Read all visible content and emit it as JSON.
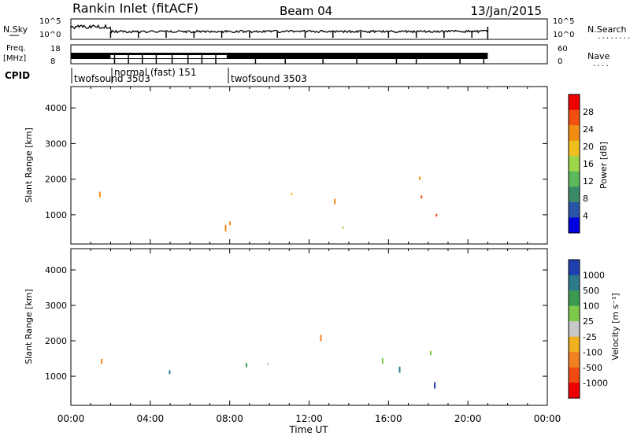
{
  "header": {
    "station": "Rankin Inlet (fitACF)",
    "beam": "Beam 04",
    "date": "13/Jan/2015"
  },
  "sky_panel": {
    "left_label": "N.Sky",
    "right_label": "N.Search",
    "left_ticks": [
      "10^5",
      "10^0"
    ],
    "right_ticks": [
      "10^5",
      "10^0"
    ],
    "right_dots": "........"
  },
  "freq_panel": {
    "left_label_1": "Freq.",
    "left_label_2": "[MHz]",
    "right_label": "Nave",
    "left_ticks": [
      "18",
      "8"
    ],
    "right_ticks": [
      "60",
      "0"
    ],
    "right_dots": "...."
  },
  "cpid": {
    "label": "CPID",
    "segments": [
      {
        "name": "twofsound 3503",
        "start_h": 0.0,
        "end_h": 2.0
      },
      {
        "name": "normal (fast) 151",
        "start_h": 2.0,
        "end_h": 7.85
      },
      {
        "name": "twofsound 3503",
        "start_h": 7.85,
        "end_h": 21.0
      }
    ]
  },
  "colors": {
    "power_scale": [
      "#0000dd",
      "#2855a8",
      "#3a8a68",
      "#5bb85b",
      "#9ed64a",
      "#f0c020",
      "#f28c10",
      "#f25010",
      "#ee0000"
    ],
    "velocity_scale": [
      "#1f3fb0",
      "#2a7a8a",
      "#3a9a50",
      "#7ec84a",
      "#c8c8c8",
      "#f0b020",
      "#f08020",
      "#f04a10",
      "#ee0000"
    ]
  },
  "chart_data": [
    {
      "type": "heatmap",
      "title": "",
      "xlabel": "Time UT",
      "ylabel": "Slant Range [km]",
      "xlim_hours": [
        0,
        24
      ],
      "ylim_km": [
        180,
        4600
      ],
      "x_ticks": [
        "00:00",
        "04:00",
        "08:00",
        "12:00",
        "16:00",
        "20:00",
        "00:00"
      ],
      "y_ticks": [
        1000,
        2000,
        3000,
        4000
      ],
      "colorbar_label": "Power [dB]",
      "colorbar_ticks": [
        "4",
        "8",
        "12",
        "16",
        "20",
        "24",
        "28"
      ],
      "data_end_hour": 21.0
    },
    {
      "type": "heatmap",
      "title": "",
      "xlabel": "Time UT",
      "ylabel": "Slant Range [km]",
      "xlim_hours": [
        0,
        24
      ],
      "ylim_km": [
        180,
        4600
      ],
      "x_ticks": [
        "00:00",
        "04:00",
        "08:00",
        "12:00",
        "16:00",
        "20:00",
        "00:00"
      ],
      "y_ticks": [
        1000,
        2000,
        3000,
        4000
      ],
      "colorbar_label": "Velocity [m s⁻¹]",
      "colorbar_ticks": [
        "1000",
        "500",
        "100",
        "25",
        "-25",
        "-100",
        "-500",
        "-1000"
      ],
      "data_end_hour": 21.0
    }
  ],
  "x_axis": {
    "label": "Time UT",
    "ticks": [
      "00:00",
      "04:00",
      "08:00",
      "12:00",
      "16:00",
      "20:00",
      "00:00"
    ]
  }
}
